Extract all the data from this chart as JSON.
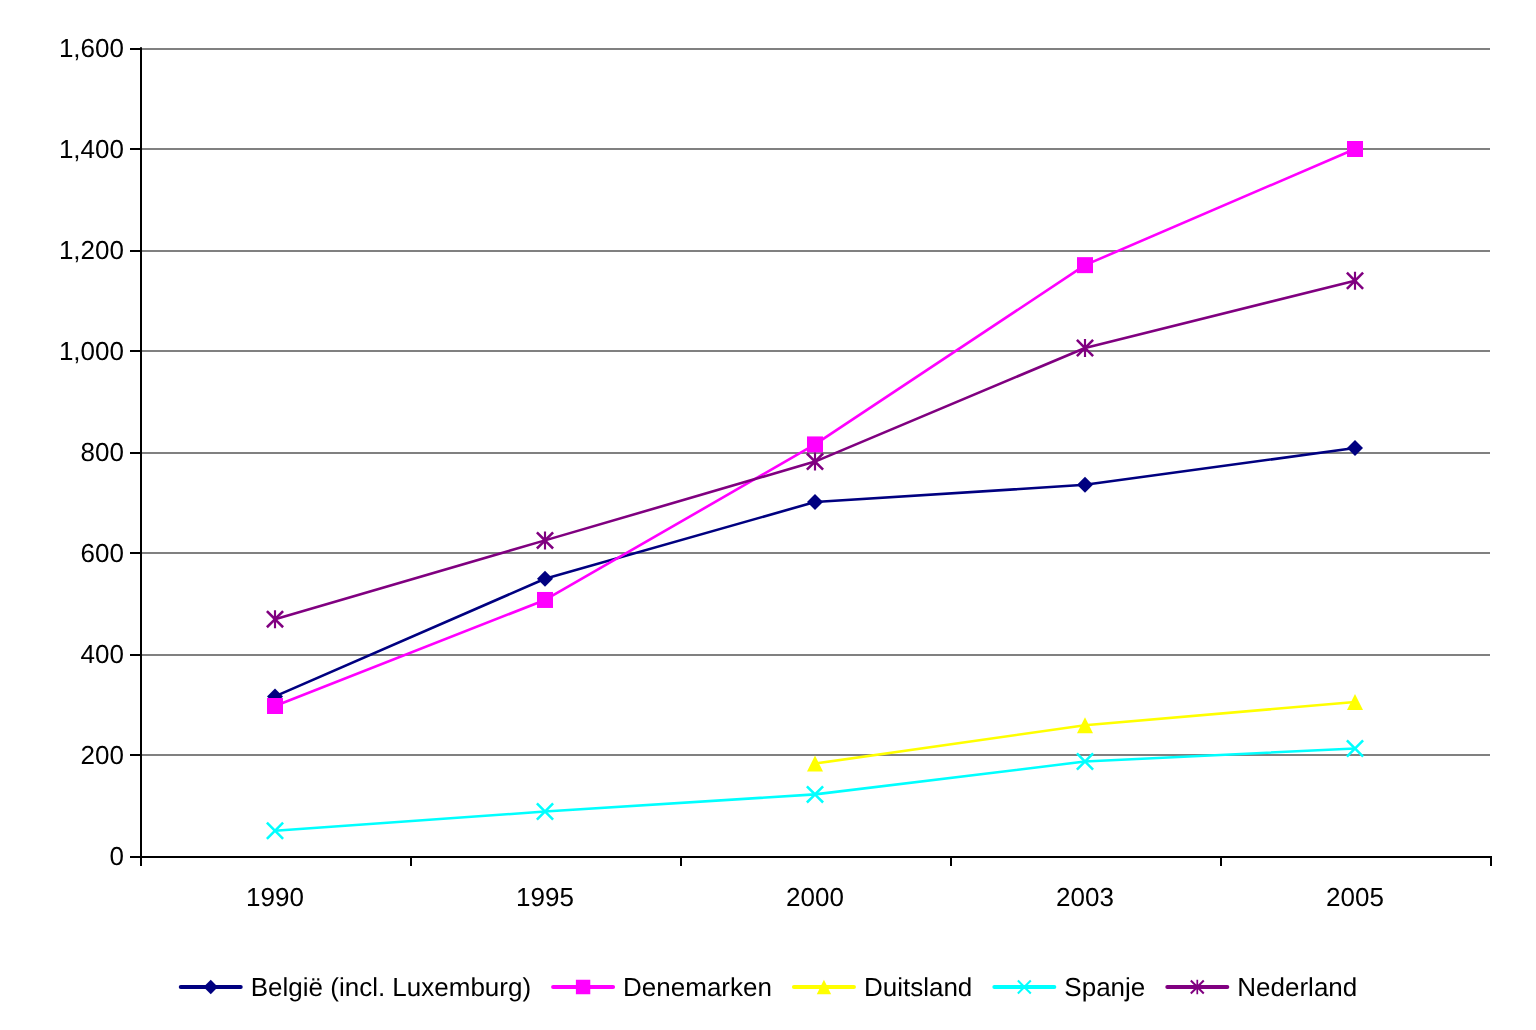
{
  "chart_data": {
    "type": "line",
    "categories": [
      "1990",
      "1995",
      "2000",
      "2003",
      "2005"
    ],
    "series": [
      {
        "name": "België (incl. Luxemburg)",
        "color": "#000080",
        "marker": "diamond",
        "values": [
          316,
          549,
          701,
          735,
          808
        ]
      },
      {
        "name": "Denemarken",
        "color": "#ff00ff",
        "marker": "square",
        "values": [
          297,
          507,
          815,
          1170,
          1400
        ]
      },
      {
        "name": "Duitsland",
        "color": "#ffff00",
        "marker": "triangle",
        "values": [
          null,
          null,
          183,
          259,
          305
        ]
      },
      {
        "name": "Spanje",
        "color": "#00ffff",
        "marker": "cross",
        "values": [
          50,
          88,
          122,
          187,
          213
        ]
      },
      {
        "name": "Nederland",
        "color": "#800080",
        "marker": "star",
        "values": [
          469,
          625,
          781,
          1006,
          1139
        ]
      }
    ],
    "ylim": [
      0,
      1600
    ],
    "yticks": [
      {
        "value": 0,
        "label": "0"
      },
      {
        "value": 200,
        "label": "200"
      },
      {
        "value": 400,
        "label": "400"
      },
      {
        "value": 600,
        "label": "600"
      },
      {
        "value": 800,
        "label": "800"
      },
      {
        "value": 1000,
        "label": "1,000"
      },
      {
        "value": 1200,
        "label": "1,200"
      },
      {
        "value": 1400,
        "label": "1,400"
      },
      {
        "value": 1600,
        "label": "1,600"
      }
    ],
    "grid": "y",
    "legend": "bottom",
    "line_style": "solid"
  }
}
